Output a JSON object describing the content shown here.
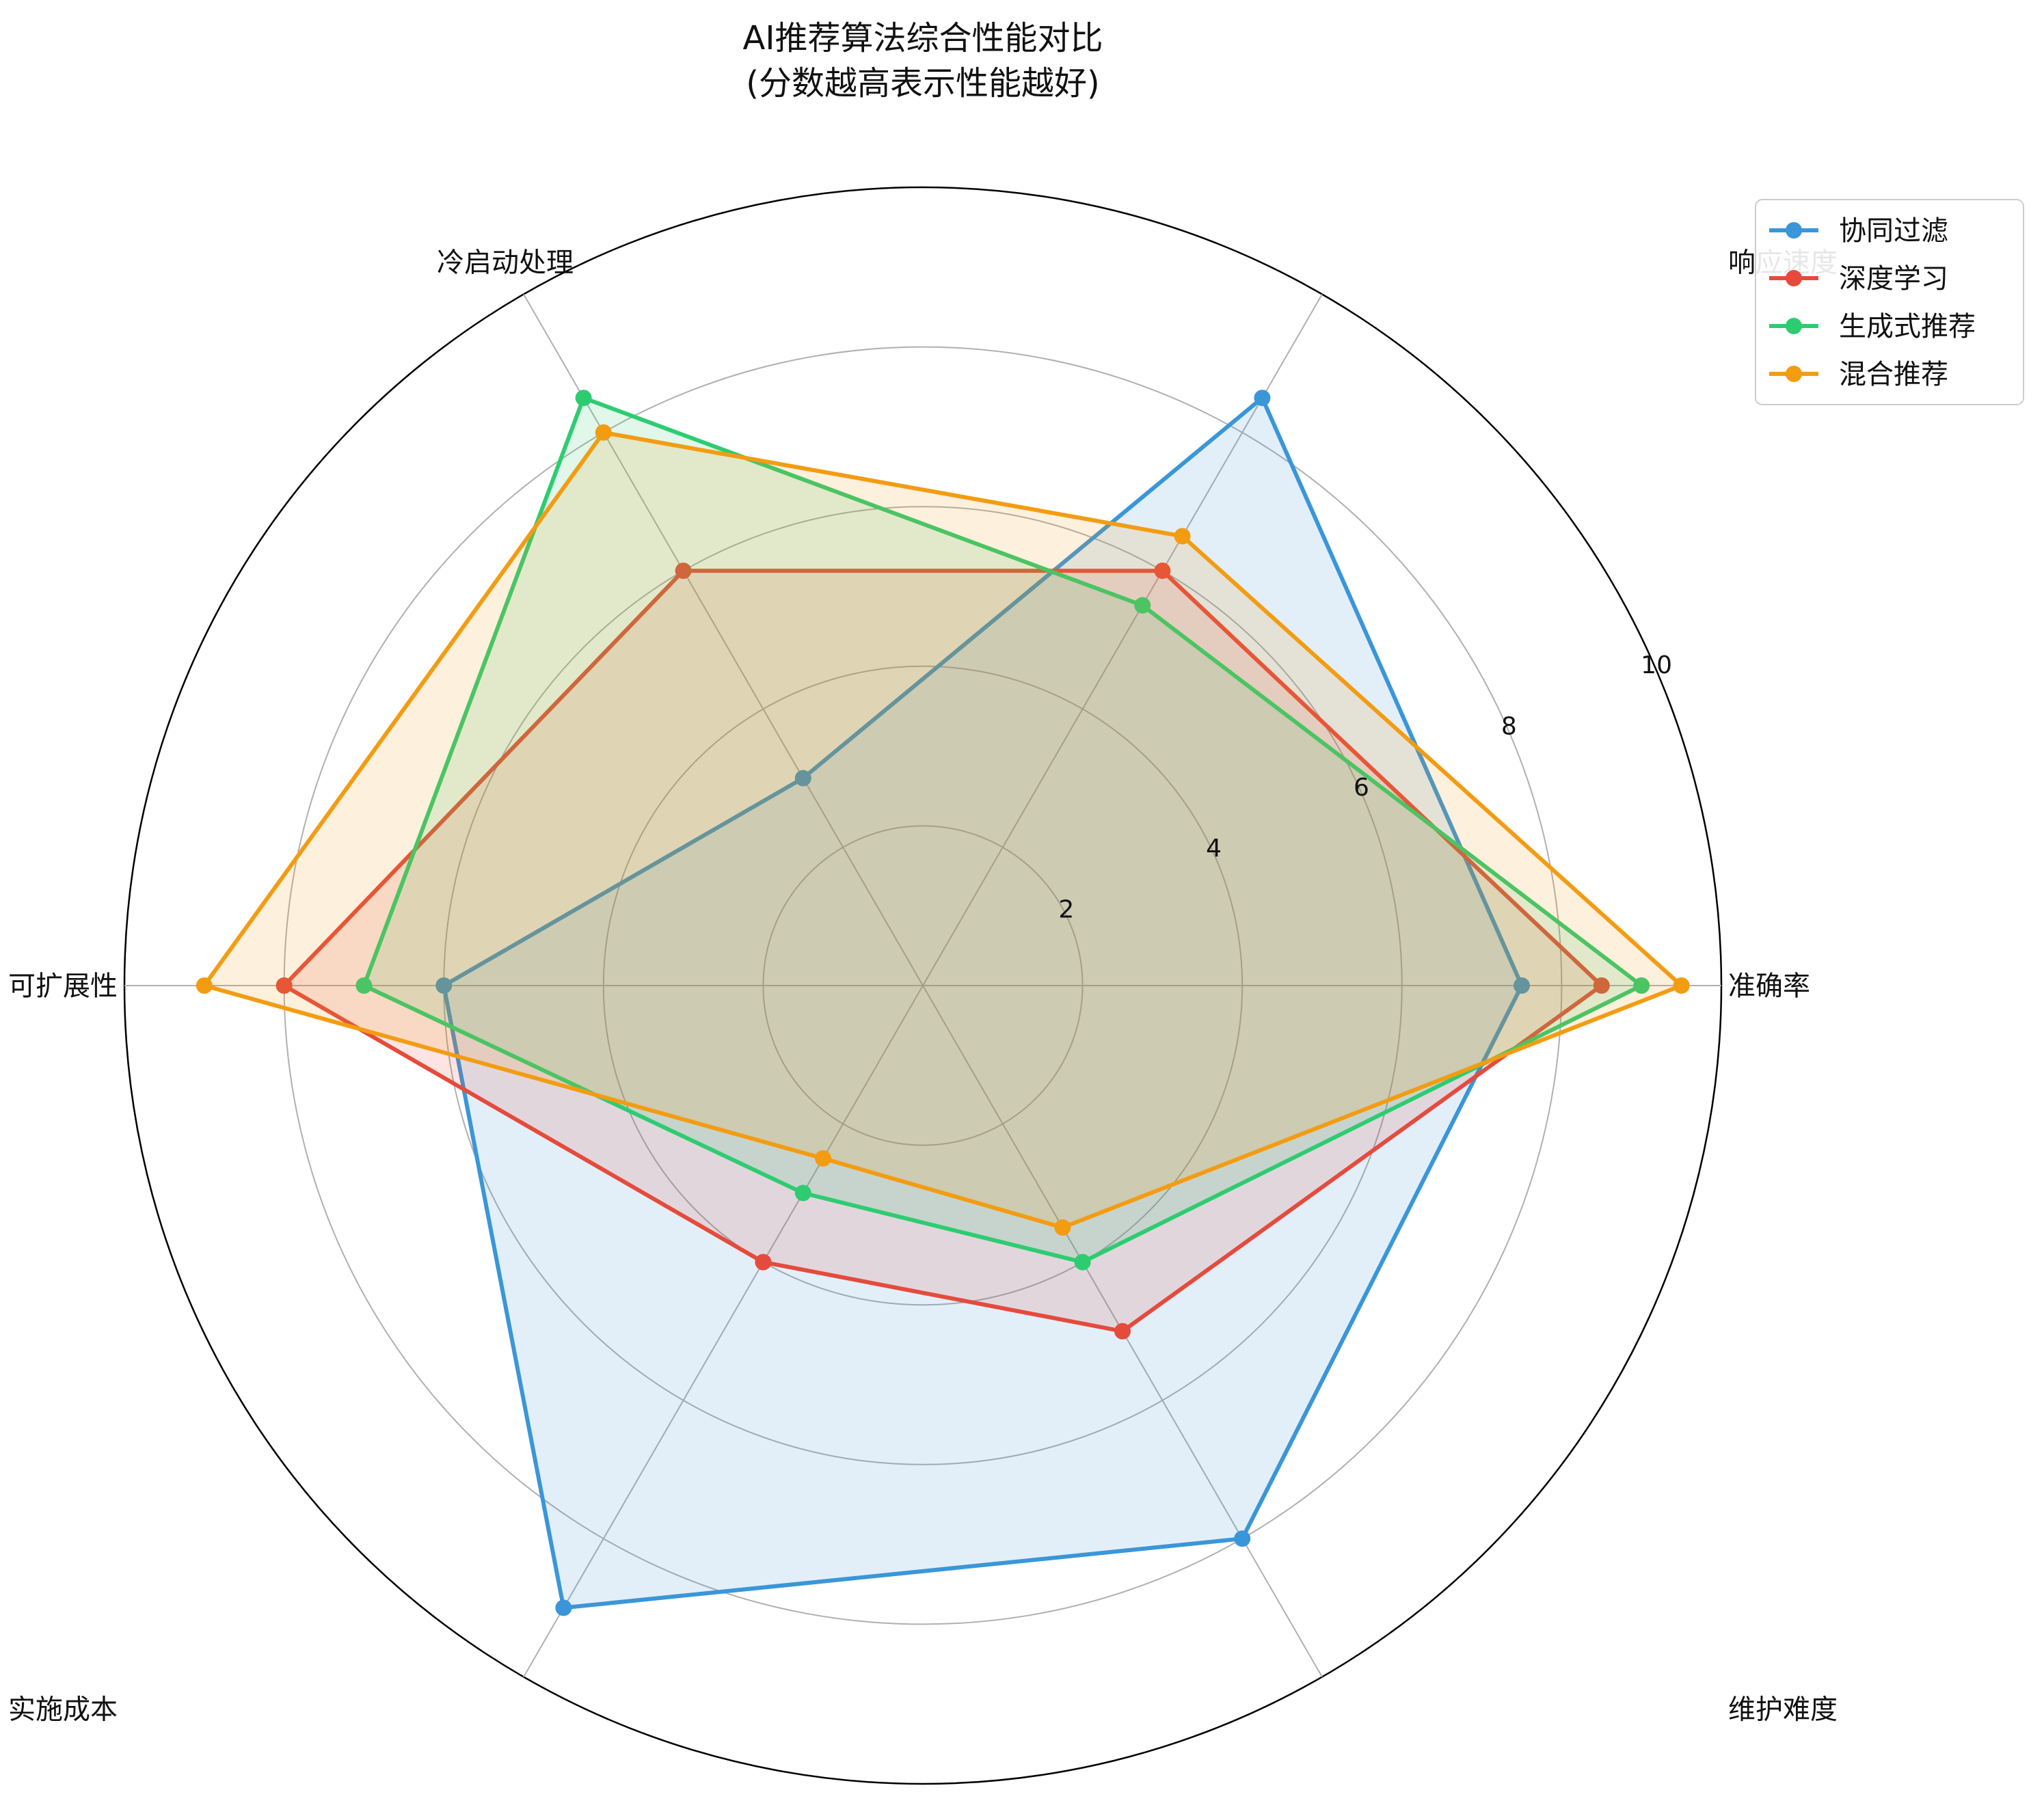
{
  "chart_data": {
    "type": "radar",
    "title_lines": [
      "AI推荐算法综合性能对比",
      "(分数越高表示性能越好)"
    ],
    "axes": [
      "准确率",
      "响应速度",
      "冷启动处理",
      "可扩展性",
      "实施成本",
      "维护难度"
    ],
    "rlim": [
      0,
      10
    ],
    "radial_ticks": [
      "2",
      "4",
      "6",
      "8",
      "10"
    ],
    "radial_tick_values": [
      2,
      4,
      6,
      8,
      10
    ],
    "grid": true,
    "legend_position": "top-right",
    "series": [
      {
        "name": "协同过滤",
        "color": "#3a96d8",
        "values": [
          7.5,
          8.5,
          3.0,
          6.0,
          9.0,
          8.0
        ]
      },
      {
        "name": "深度学习",
        "color": "#e54b3c",
        "values": [
          8.5,
          6.0,
          6.0,
          8.0,
          4.0,
          5.0
        ]
      },
      {
        "name": "生成式推荐",
        "color": "#2ecc71",
        "values": [
          9.0,
          5.5,
          8.5,
          7.0,
          3.0,
          4.0
        ]
      },
      {
        "name": "混合推荐",
        "color": "#f39c12",
        "values": [
          9.5,
          6.5,
          8.0,
          9.0,
          2.5,
          3.5
        ]
      }
    ]
  }
}
